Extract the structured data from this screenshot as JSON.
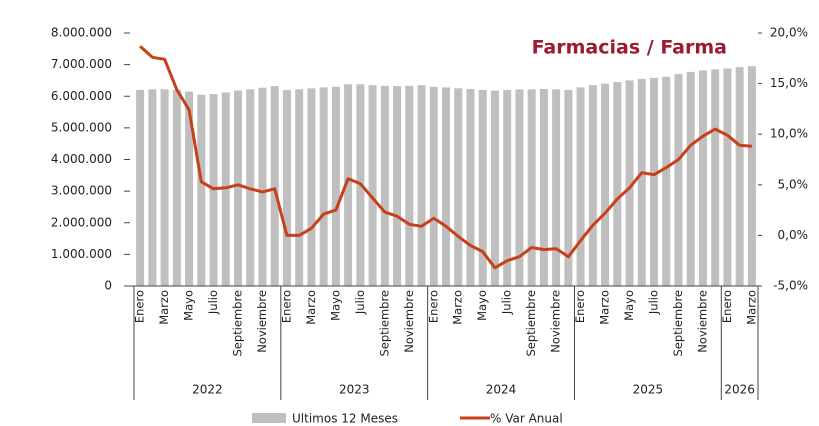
{
  "chart_data": {
    "type": "bar_line",
    "title": "Farmacias / Farma",
    "categories": [
      "Enero",
      null,
      "Marzo",
      null,
      "Mayo",
      null,
      "Julio",
      null,
      "Septiembre",
      null,
      "Noviembre",
      null,
      "Enero",
      null,
      "Marzo",
      null,
      "Mayo",
      null,
      "Julio",
      null,
      "Septiembre",
      null,
      "Noviembre",
      null,
      "Enero",
      null,
      "Marzo",
      null,
      "Mayo",
      null,
      "Julio",
      null,
      "Septiembre",
      null,
      "Noviembre",
      null,
      "Enero",
      null,
      "Marzo",
      null,
      "Mayo",
      null,
      "Julio",
      null,
      "Septiembre",
      null,
      "Noviembre",
      null,
      "Enero",
      null,
      "Marzo"
    ],
    "x_groups": [
      "2022",
      "2023",
      "2024",
      "2025",
      "2026"
    ],
    "series": [
      {
        "name": "Ultimos 12 Meses",
        "type": "bar",
        "color": "#bfbfbf",
        "axis": "y",
        "values": [
          6200000,
          6220000,
          6220000,
          6200000,
          6150000,
          6050000,
          6070000,
          6120000,
          6180000,
          6220000,
          6270000,
          6320000,
          6200000,
          6220000,
          6250000,
          6280000,
          6300000,
          6380000,
          6380000,
          6350000,
          6330000,
          6320000,
          6330000,
          6350000,
          6300000,
          6280000,
          6250000,
          6230000,
          6200000,
          6180000,
          6200000,
          6220000,
          6220000,
          6230000,
          6220000,
          6200000,
          6280000,
          6350000,
          6400000,
          6450000,
          6500000,
          6550000,
          6580000,
          6620000,
          6700000,
          6770000,
          6820000,
          6850000,
          6880000,
          6920000,
          6950000
        ]
      },
      {
        "name": "% Var Anual",
        "type": "line",
        "color": "#c8401a",
        "axis": "y2",
        "values": [
          18.7,
          17.6,
          17.4,
          14.4,
          12.4,
          5.3,
          4.6,
          4.7,
          5.0,
          4.6,
          4.3,
          4.6,
          0.0,
          0.0,
          0.7,
          2.1,
          2.5,
          5.6,
          5.1,
          3.7,
          2.3,
          1.9,
          1.1,
          0.9,
          1.7,
          0.9,
          -0.1,
          -1.0,
          -1.6,
          -3.2,
          -2.5,
          -2.1,
          -1.2,
          -1.4,
          -1.3,
          -2.1,
          -0.5,
          1.0,
          2.2,
          3.6,
          4.7,
          6.2,
          6.0,
          6.7,
          7.5,
          8.9,
          9.8,
          10.5,
          9.9,
          8.9,
          8.8
        ]
      }
    ],
    "ylim": [
      0,
      8000000
    ],
    "yticks": [
      0,
      {
        "value": 1000000,
        "label": "1.000.000"
      },
      {
        "value": 2000000,
        "label": "2.000.000"
      },
      {
        "value": 3000000,
        "label": "3.000.000"
      },
      {
        "value": 4000000,
        "label": "4.000.000"
      },
      {
        "value": 5000000,
        "label": "5.000.000"
      },
      {
        "value": 6000000,
        "label": "6.000.000"
      },
      {
        "value": 7000000,
        "label": "7.000.000"
      },
      {
        "value": 8000000,
        "label": "8.000.000"
      }
    ],
    "y2lim": [
      -5,
      20
    ],
    "y2ticks": [
      {
        "value": -5,
        "label": "-5,0%"
      },
      {
        "value": 0,
        "label": "0,0%"
      },
      {
        "value": 5,
        "label": "5,0%"
      },
      {
        "value": 10,
        "label": "10,0%"
      },
      {
        "value": 15,
        "label": "15,0%"
      },
      {
        "value": 20,
        "label": "20,0%"
      }
    ],
    "legend": "bottom"
  }
}
